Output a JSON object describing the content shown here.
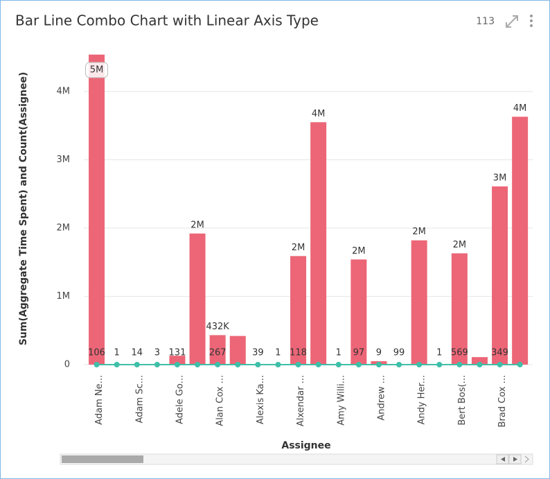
{
  "chart_data": {
    "type": "bar_line",
    "title": "Bar Line Combo Chart with Linear Axis Type",
    "badge": "113",
    "x_label": "Assignee",
    "y_label": "Sum(Aggregate Time Spent) and Count(Assignee)",
    "categories": [
      "Adam Ne...",
      null,
      "Adam Sc...",
      null,
      "Adele Go...",
      null,
      "Alan Cox ...",
      null,
      "Alexis Ka...",
      null,
      "Alxendar ...",
      null,
      "Amy Willi...",
      null,
      "Andrew ...",
      null,
      "Andy Her...",
      null,
      "Bert Bos(...",
      null,
      "Brad Cox ...",
      null
    ],
    "series": [
      {
        "color": "#ec6677",
        "values": [
          4540000,
          0,
          0,
          0,
          130000,
          1920000,
          432000,
          420000,
          0,
          0,
          1590000,
          3550000,
          0,
          1540000,
          50000,
          10000,
          1820000,
          0,
          1630000,
          110000,
          2610000,
          3630000
        ],
        "value_labels": [
          "5M",
          null,
          null,
          null,
          null,
          "2M",
          "432K",
          null,
          null,
          null,
          "2M",
          "4M",
          null,
          "2M",
          null,
          null,
          "2M",
          null,
          "2M",
          null,
          "3M",
          "4M"
        ]
      },
      {
        "color": "#3fbfa8",
        "values": [
          106,
          1,
          14,
          3,
          131,
          150,
          267,
          100,
          39,
          1,
          118,
          200,
          1,
          97,
          9,
          99,
          150,
          1,
          569,
          50,
          349,
          300
        ],
        "value_labels": [
          "106",
          "1",
          "14",
          "3",
          "131",
          null,
          "267",
          null,
          "39",
          "1",
          "118",
          null,
          "1",
          "97",
          "9",
          "99",
          null,
          "1",
          "569",
          null,
          "349",
          null
        ]
      }
    ],
    "ylim": [
      0,
      4700000
    ],
    "yticks": [
      0,
      {
        "value": 1000000,
        "label": "1M"
      },
      {
        "value": 2000000,
        "label": "2M"
      },
      {
        "value": 3000000,
        "label": "3M"
      },
      {
        "value": 4000000,
        "label": "4M"
      }
    ],
    "grid": true
  }
}
